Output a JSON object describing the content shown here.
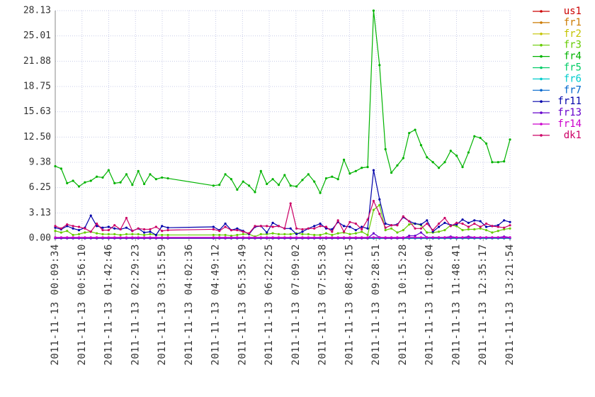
{
  "chart_data": {
    "type": "line",
    "x": [
      "2011-11-13 00:09:34",
      "2011-11-13 00:19:54",
      "2011-11-13 00:30:14",
      "2011-11-13 00:40:34",
      "2011-11-13 00:50:54",
      "2011-11-13 01:01:14",
      "2011-11-13 01:11:34",
      "2011-11-13 01:21:54",
      "2011-11-13 01:32:14",
      "2011-11-13 01:42:34",
      "2011-11-13 01:52:54",
      "2011-11-13 02:03:14",
      "2011-11-13 02:13:34",
      "2011-11-13 02:23:54",
      "2011-11-13 02:34:14",
      "2011-11-13 02:44:34",
      "2011-11-13 02:54:54",
      "2011-11-13 03:05:14",
      "2011-11-13 03:15:34",
      "2011-11-13 03:25:54",
      "2011-11-13 04:45:14",
      "2011-11-13 04:55:34",
      "2011-11-13 05:05:54",
      "2011-11-13 05:16:14",
      "2011-11-13 05:26:34",
      "2011-11-13 05:36:54",
      "2011-11-13 05:47:14",
      "2011-11-13 05:57:34",
      "2011-11-13 06:07:54",
      "2011-11-13 06:18:14",
      "2011-11-13 06:28:34",
      "2011-11-13 06:38:54",
      "2011-11-13 06:49:14",
      "2011-11-13 06:59:34",
      "2011-11-13 07:09:54",
      "2011-11-13 07:20:14",
      "2011-11-13 07:30:34",
      "2011-11-13 07:40:54",
      "2011-11-13 07:51:14",
      "2011-11-13 08:01:34",
      "2011-11-13 08:11:54",
      "2011-11-13 08:22:14",
      "2011-11-13 08:32:34",
      "2011-11-13 08:42:54",
      "2011-11-13 08:53:14",
      "2011-11-13 09:03:34",
      "2011-11-13 09:13:54",
      "2011-11-13 09:24:14",
      "2011-11-13 09:34:34",
      "2011-11-13 09:44:54",
      "2011-11-13 09:55:14",
      "2011-11-13 10:05:34",
      "2011-11-13 10:15:54",
      "2011-11-13 10:26:14",
      "2011-11-13 10:36:34",
      "2011-11-13 10:46:54",
      "2011-11-13 10:57:14",
      "2011-11-13 11:07:34",
      "2011-11-13 11:17:54",
      "2011-11-13 11:28:14",
      "2011-11-13 11:38:34",
      "2011-11-13 11:48:54",
      "2011-11-13 11:59:14",
      "2011-11-13 12:09:34",
      "2011-11-13 12:19:54",
      "2011-11-13 12:30:14",
      "2011-11-13 12:40:34",
      "2011-11-13 12:50:54",
      "2011-11-13 13:01:14",
      "2011-11-13 13:11:34",
      "2011-11-13 13:21:54"
    ],
    "xlim": [
      "2011-11-13 00:09:34",
      "2011-11-13 13:21:54"
    ],
    "xticks": [
      "2011-11-13 00:09:34",
      "2011-11-13 00:56:10",
      "2011-11-13 01:42:46",
      "2011-11-13 02:29:23",
      "2011-11-13 03:15:59",
      "2011-11-13 04:02:36",
      "2011-11-13 04:49:12",
      "2011-11-13 05:35:49",
      "2011-11-13 06:22:25",
      "2011-11-13 07:09:02",
      "2011-11-13 07:55:38",
      "2011-11-13 08:42:15",
      "2011-11-13 09:28:51",
      "2011-11-13 10:15:28",
      "2011-11-13 11:02:04",
      "2011-11-13 11:48:41",
      "2011-11-13 12:35:17",
      "2011-11-13 13:21:54"
    ],
    "ylim": [
      0,
      28.132
    ],
    "yticks": [
      {
        "value": 0,
        "label": "0.00"
      },
      {
        "value": 3.1258,
        "label": "3.13"
      },
      {
        "value": 6.2516,
        "label": "6.25"
      },
      {
        "value": 9.3773,
        "label": "9.38"
      },
      {
        "value": 12.5031,
        "label": "12.50"
      },
      {
        "value": 15.6289,
        "label": "15.63"
      },
      {
        "value": 18.7547,
        "label": "18.75"
      },
      {
        "value": 21.8804,
        "label": "21.88"
      },
      {
        "value": 25.0062,
        "label": "25.01"
      },
      {
        "value": 28.132,
        "label": "28.13"
      }
    ],
    "grid": true,
    "legend": "right",
    "series": [
      {
        "name": "us1",
        "color": "#cc0000",
        "values": [
          0,
          0,
          0,
          0,
          0,
          0,
          0,
          0,
          0,
          0,
          0,
          0,
          0,
          0,
          0,
          0,
          0,
          0,
          0,
          0,
          0,
          0,
          0,
          0,
          0,
          0,
          0,
          0,
          0,
          0,
          0,
          0,
          0,
          0,
          0,
          0,
          0,
          0,
          0,
          0,
          0,
          0,
          0,
          0,
          0,
          0,
          0,
          0,
          0,
          0,
          0,
          0,
          0,
          0,
          0,
          0,
          0,
          0,
          0,
          0,
          0,
          0,
          0,
          0,
          0,
          0,
          0,
          0,
          0,
          0,
          0
        ]
      },
      {
        "name": "fr1",
        "color": "#cc7a00",
        "values": [
          0,
          0,
          0,
          0,
          0,
          0,
          0,
          0,
          0,
          0,
          0,
          0,
          0,
          0,
          0,
          0,
          0,
          0,
          0,
          0,
          0,
          0,
          0,
          0,
          0,
          0,
          0,
          0,
          0,
          0,
          0,
          0,
          0,
          0,
          0,
          0,
          0,
          0,
          0,
          0,
          0,
          0,
          0,
          0,
          0,
          0,
          0,
          0,
          0,
          0,
          0,
          0,
          0,
          0,
          0,
          0,
          0,
          0,
          0,
          0,
          0,
          0,
          0,
          0,
          0,
          0,
          0,
          0,
          0,
          0,
          0
        ]
      },
      {
        "name": "fr2",
        "color": "#c4c400",
        "values": [
          0,
          0,
          0,
          0,
          0,
          0,
          0,
          0,
          0,
          0,
          0,
          0,
          0,
          0,
          0,
          0,
          0,
          0,
          0,
          0,
          0,
          0,
          0,
          0,
          0,
          0,
          0,
          0,
          0,
          0,
          0,
          0,
          0,
          0,
          0,
          0,
          0,
          0,
          0,
          0,
          0,
          0,
          0,
          0,
          0,
          0,
          0,
          0,
          0,
          0,
          0,
          0,
          0,
          0,
          0,
          0,
          0,
          0,
          0,
          0,
          0,
          0,
          0,
          0,
          0,
          0,
          0,
          0,
          0,
          0,
          0
        ]
      },
      {
        "name": "fr3",
        "color": "#66cc00",
        "values": [
          0.9,
          0.7,
          0.9,
          0.4,
          0.5,
          0.7,
          0.8,
          0.6,
          0.5,
          0.5,
          0.5,
          0.4,
          0.5,
          0.5,
          0.5,
          0.4,
          0.5,
          0.4,
          0.4,
          0.4,
          0.4,
          0.4,
          0.4,
          0.3,
          0.4,
          0.5,
          0.5,
          0.2,
          0.5,
          0.5,
          0.6,
          0.5,
          0.5,
          0.5,
          0.6,
          0.5,
          0.5,
          0.4,
          0.4,
          0.6,
          0.4,
          0.6,
          0.7,
          0.5,
          0.6,
          0.8,
          0.4,
          3.5,
          4.1,
          1.0,
          1.2,
          0.7,
          1.0,
          1.7,
          1.8,
          1.6,
          0.7,
          0.7,
          0.8,
          1.0,
          1.6,
          1.5,
          1.0,
          1.1,
          1.1,
          1.2,
          1.0,
          0.7,
          0.9,
          1.1,
          1.2
        ]
      },
      {
        "name": "fr4",
        "color": "#00b300",
        "values": [
          8.9,
          8.6,
          6.8,
          7.1,
          6.4,
          6.9,
          7.1,
          7.6,
          7.5,
          8.4,
          6.8,
          6.9,
          7.9,
          6.6,
          8.3,
          6.7,
          7.9,
          7.3,
          7.5,
          7.4,
          6.5,
          6.6,
          7.9,
          7.3,
          6.0,
          7.0,
          6.5,
          5.7,
          8.3,
          6.7,
          7.3,
          6.6,
          7.8,
          6.5,
          6.4,
          7.2,
          7.9,
          7.0,
          5.6,
          7.4,
          7.6,
          7.3,
          9.7,
          8.0,
          8.3,
          8.7,
          8.8,
          28.13,
          21.4,
          11.0,
          8.1,
          9.0,
          9.9,
          13.0,
          13.4,
          11.5,
          10.0,
          9.4,
          8.7,
          9.4,
          10.8,
          10.2,
          8.8,
          10.6,
          12.6,
          12.4,
          11.7,
          9.4,
          9.4,
          9.5,
          12.2
        ]
      },
      {
        "name": "fr5",
        "color": "#00cc66",
        "values": [
          0,
          0,
          0,
          0,
          0,
          0,
          0,
          0,
          0,
          0,
          0,
          0,
          0,
          0,
          0,
          0,
          0,
          0,
          0,
          0,
          0,
          0,
          0,
          0,
          0,
          0,
          0,
          0,
          0,
          0,
          0,
          0,
          0,
          0,
          0,
          0,
          0,
          0,
          0,
          0,
          0,
          0,
          0,
          0,
          0,
          0,
          0,
          0,
          0,
          0,
          0,
          0,
          0,
          0,
          0,
          0,
          0,
          0,
          0,
          0,
          0,
          0,
          0,
          0,
          0,
          0,
          0,
          0,
          0,
          0,
          0
        ]
      },
      {
        "name": "fr6",
        "color": "#00cccc",
        "values": [
          0,
          0,
          0,
          0,
          0,
          0,
          0,
          0,
          0,
          0,
          0,
          0,
          0,
          0,
          0,
          0,
          0,
          0,
          0,
          0,
          0,
          0,
          0,
          0,
          0,
          0,
          0,
          0,
          0,
          0,
          0,
          0,
          0,
          0,
          0,
          0,
          0,
          0,
          0,
          0,
          0,
          0,
          0,
          0,
          0,
          0,
          0,
          0,
          0,
          0,
          0,
          0,
          0,
          0,
          0,
          0,
          0,
          0,
          0,
          0,
          0,
          0,
          0,
          0,
          0,
          0,
          0,
          0,
          0,
          0,
          0
        ]
      },
      {
        "name": "fr7",
        "color": "#0066cc",
        "values": [
          0,
          0,
          0,
          0,
          0,
          0,
          0,
          0,
          0,
          0,
          0,
          0,
          0,
          0,
          0,
          0,
          0,
          0,
          0,
          0,
          0,
          0,
          0,
          0,
          0,
          0,
          0,
          0,
          0,
          0,
          0,
          0,
          0,
          0,
          0,
          0,
          0,
          0,
          0,
          0,
          0,
          0,
          0,
          0,
          0,
          0,
          0,
          0,
          0,
          0,
          0,
          0,
          0,
          0,
          0,
          0,
          0,
          0,
          0,
          0,
          0,
          0,
          0,
          0,
          0,
          0,
          0,
          0,
          0,
          0,
          0
        ]
      },
      {
        "name": "fr11",
        "color": "#0000aa",
        "values": [
          1.3,
          1.1,
          1.5,
          1.2,
          1.0,
          1.3,
          2.8,
          1.5,
          1.3,
          1.4,
          1.2,
          1.1,
          1.3,
          0.9,
          1.2,
          0.7,
          0.8,
          0.4,
          1.5,
          1.3,
          1.4,
          1.0,
          1.8,
          1.0,
          1.2,
          0.9,
          0.5,
          1.4,
          1.5,
          0.7,
          1.9,
          1.5,
          1.2,
          1.2,
          0.5,
          0.8,
          1.2,
          1.5,
          1.8,
          1.2,
          1.1,
          2.0,
          1.5,
          1.4,
          1.0,
          1.4,
          1.2,
          8.4,
          4.8,
          1.8,
          1.6,
          1.7,
          2.6,
          2.1,
          1.8,
          1.7,
          2.2,
          0.8,
          1.4,
          1.9,
          1.6,
          1.7,
          2.3,
          1.9,
          2.2,
          2.1,
          1.4,
          1.5,
          1.6,
          2.2,
          2.0
        ]
      },
      {
        "name": "fr13",
        "color": "#6600cc",
        "values": [
          0,
          0,
          0,
          0,
          0,
          0,
          0,
          0,
          0,
          0,
          0,
          0,
          0,
          0,
          0,
          0,
          0,
          0,
          0,
          0,
          0,
          0,
          0,
          0,
          0,
          0,
          0,
          0,
          0,
          0,
          0,
          0,
          0,
          0,
          0,
          0,
          0,
          0,
          0,
          0,
          0,
          0,
          0,
          0,
          0,
          0,
          0,
          0.6,
          0.1,
          0,
          0,
          0,
          0,
          0.3,
          0.3,
          0.7,
          0.1,
          0.1,
          0.1,
          0.1,
          0.2,
          0.1,
          0.1,
          0.2,
          0.1,
          0.1,
          0.1,
          0.1,
          0.1,
          0.2,
          0.1
        ]
      },
      {
        "name": "fr14",
        "color": "#cc00cc",
        "values": [
          0.1,
          0.1,
          0.1,
          0.1,
          0.1,
          0.1,
          0.1,
          0.1,
          0.1,
          0.1,
          0.1,
          0.1,
          0.1,
          0.1,
          0.1,
          0.1,
          0.1,
          0.1,
          0.1,
          0.1,
          0.1,
          0.1,
          0.1,
          0.1,
          0.1,
          0.1,
          0.1,
          0.1,
          0.1,
          0.1,
          0.1,
          0.1,
          0.1,
          0.1,
          0.1,
          0.1,
          0.1,
          0.1,
          0.1,
          0.1,
          0.1,
          0.1,
          0.1,
          0.1,
          0.1,
          0.1,
          0.1,
          0.1,
          0.1,
          0.1,
          0.1,
          0.1,
          0.1,
          0.1,
          0.1,
          0.1,
          0.1,
          0.1,
          0.1,
          0.1,
          0.1,
          0.1,
          0.1,
          0.1,
          0.1,
          0.1,
          0.1,
          0.1,
          0.1,
          0.1,
          0.1
        ]
      },
      {
        "name": "dk1",
        "color": "#cc0066",
        "values": [
          1.5,
          1.2,
          1.7,
          1.5,
          1.4,
          1.2,
          0.8,
          1.8,
          1.0,
          1.0,
          1.6,
          1.1,
          2.5,
          0.9,
          1.2,
          1.1,
          1.1,
          1.4,
          0.9,
          1.0,
          1.1,
          0.9,
          1.4,
          1.0,
          1.0,
          0.8,
          0.6,
          1.5,
          1.5,
          1.5,
          1.4,
          1.5,
          1.2,
          4.3,
          1.2,
          1.1,
          1.2,
          1.2,
          1.5,
          1.4,
          0.8,
          2.2,
          0.8,
          2.0,
          1.8,
          1.1,
          2.3,
          4.6,
          3.0,
          1.3,
          1.6,
          1.6,
          2.7,
          2.1,
          1.2,
          1.2,
          1.8,
          1.0,
          1.8,
          2.5,
          1.5,
          1.9,
          1.8,
          1.4,
          1.8,
          1.4,
          1.8,
          1.5,
          1.4,
          1.3,
          1.6
        ]
      }
    ]
  }
}
